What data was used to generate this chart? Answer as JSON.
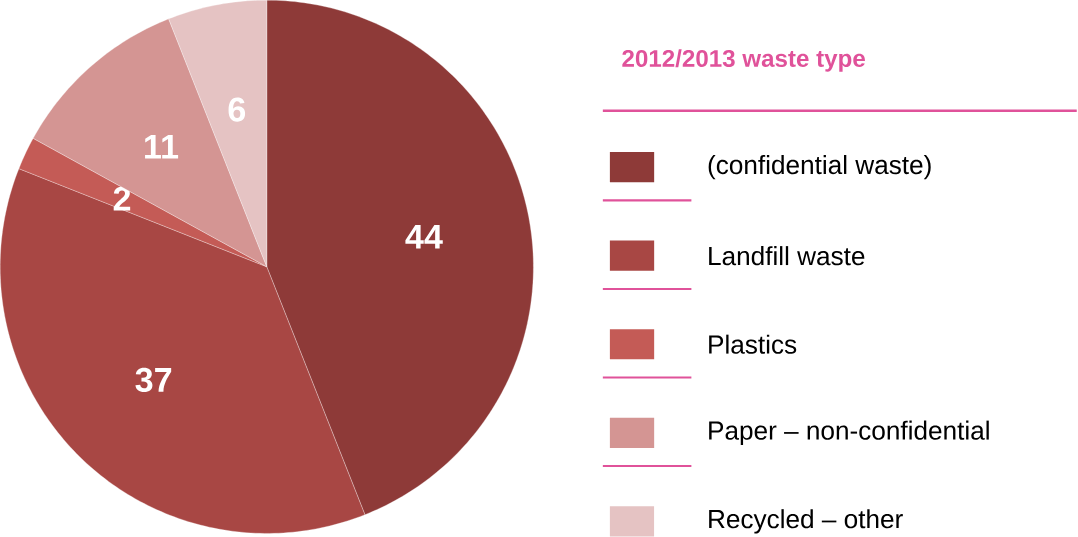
{
  "chart_data": {
    "type": "pie",
    "legend_title": "2012/2013 waste type",
    "categories": [
      "(confidential waste)",
      "Landfill waste",
      "Plastics",
      "Paper – non-confidential",
      "Recycled – other"
    ],
    "values": [
      44,
      37,
      2,
      11,
      6
    ],
    "colors": [
      "#8e3a38",
      "#a84744",
      "#c45b56",
      "#d49593",
      "#e5c3c3"
    ],
    "data_labels": true,
    "legend": "right"
  }
}
